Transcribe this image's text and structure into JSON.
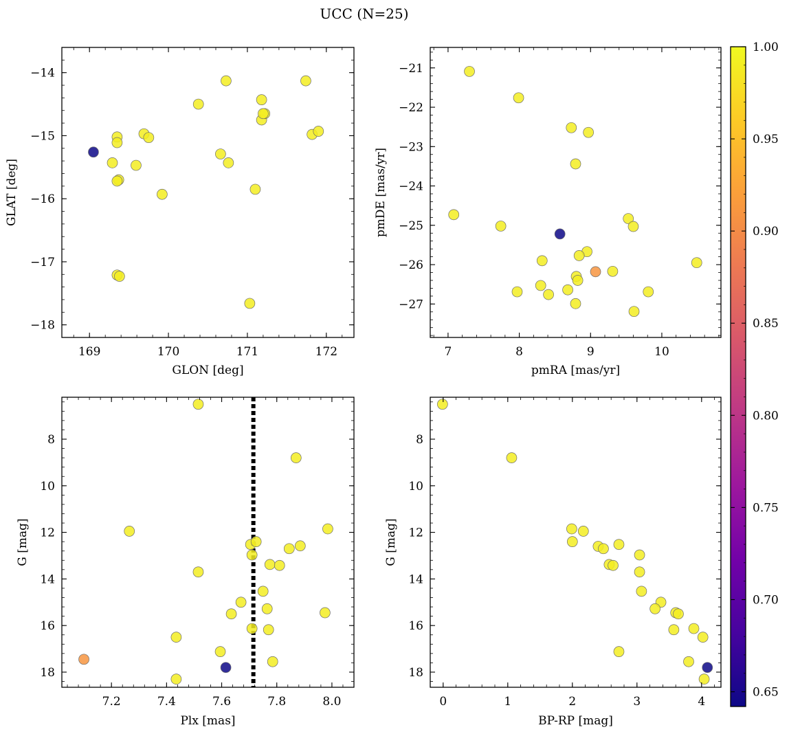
{
  "figure": {
    "title": "UCC (N=25)"
  },
  "colorbar": {
    "min": 0.642,
    "max": 1.0,
    "ticks": [
      0.65,
      0.7,
      0.75,
      0.8,
      0.85,
      0.9,
      0.95,
      1.0
    ],
    "tick_labels": [
      "0.65",
      "0.70",
      "0.75",
      "0.80",
      "0.85",
      "0.90",
      "0.95",
      "1.00"
    ],
    "colormap": "plasma",
    "stops": [
      "#0d0887",
      "#46039f",
      "#7201a8",
      "#9c179e",
      "#bd3786",
      "#d8576b",
      "#ed7953",
      "#fb9f3a",
      "#fdca26",
      "#f0f921"
    ]
  },
  "chart_data": [
    {
      "id": "glon-glat",
      "type": "scatter",
      "xlabel": "GLON [deg]",
      "ylabel": "GLAT [deg]",
      "xlim": [
        168.65,
        172.35
      ],
      "ylim": [
        -18.2,
        -13.6
      ],
      "xticks": [
        169,
        170,
        171,
        172
      ],
      "xtick_labels": [
        "169",
        "170",
        "171",
        "172"
      ],
      "yticks": [
        -14,
        -15,
        -16,
        -17,
        -18
      ],
      "ytick_labels": [
        "−14",
        "−15",
        "−16",
        "−17",
        "−18"
      ],
      "y_inverted": false,
      "points": [
        {
          "x": 169.05,
          "y": -15.26,
          "c": 0.642
        },
        {
          "x": 169.29,
          "y": -15.43,
          "c": 0.99
        },
        {
          "x": 169.35,
          "y": -15.02,
          "c": 0.99
        },
        {
          "x": 169.35,
          "y": -15.11,
          "c": 0.99
        },
        {
          "x": 169.37,
          "y": -15.7,
          "c": 0.99
        },
        {
          "x": 169.35,
          "y": -15.72,
          "c": 0.99
        },
        {
          "x": 169.59,
          "y": -15.47,
          "c": 0.99
        },
        {
          "x": 169.69,
          "y": -14.97,
          "c": 0.99
        },
        {
          "x": 169.75,
          "y": -15.03,
          "c": 0.99
        },
        {
          "x": 169.92,
          "y": -15.93,
          "c": 0.99
        },
        {
          "x": 169.35,
          "y": -17.21,
          "c": 0.99
        },
        {
          "x": 169.38,
          "y": -17.23,
          "c": 0.99
        },
        {
          "x": 170.38,
          "y": -14.5,
          "c": 0.99
        },
        {
          "x": 170.66,
          "y": -15.29,
          "c": 0.99
        },
        {
          "x": 170.73,
          "y": -14.13,
          "c": 0.99
        },
        {
          "x": 170.76,
          "y": -15.43,
          "c": 0.99
        },
        {
          "x": 171.03,
          "y": -17.66,
          "c": 0.99
        },
        {
          "x": 171.1,
          "y": -15.85,
          "c": 0.99
        },
        {
          "x": 171.18,
          "y": -14.43,
          "c": 0.99
        },
        {
          "x": 171.18,
          "y": -14.75,
          "c": 0.99
        },
        {
          "x": 171.22,
          "y": -14.65,
          "c": 0.99
        },
        {
          "x": 171.2,
          "y": -14.65,
          "c": 0.99
        },
        {
          "x": 171.74,
          "y": -14.13,
          "c": 0.99
        },
        {
          "x": 171.82,
          "y": -14.98,
          "c": 0.99
        },
        {
          "x": 171.9,
          "y": -14.93,
          "c": 0.99
        }
      ]
    },
    {
      "id": "pmra-pmde",
      "type": "scatter",
      "xlabel": "pmRA [mas/yr]",
      "ylabel": "pmDE [mas/yr]",
      "xlim": [
        6.75,
        10.83
      ],
      "ylim": [
        -27.85,
        -20.48
      ],
      "xticks": [
        7,
        8,
        9,
        10
      ],
      "xtick_labels": [
        "7",
        "8",
        "9",
        "10"
      ],
      "yticks": [
        -21,
        -22,
        -23,
        -24,
        -25,
        -26,
        -27
      ],
      "ytick_labels": [
        "−21",
        "−22",
        "−23",
        "−24",
        "−25",
        "−26",
        "−27"
      ],
      "y_inverted": false,
      "points": [
        {
          "x": 7.3,
          "y": -21.09,
          "c": 0.99
        },
        {
          "x": 7.99,
          "y": -21.76,
          "c": 0.99
        },
        {
          "x": 8.73,
          "y": -22.52,
          "c": 0.99
        },
        {
          "x": 8.97,
          "y": -22.64,
          "c": 0.99
        },
        {
          "x": 8.79,
          "y": -23.44,
          "c": 0.99
        },
        {
          "x": 7.08,
          "y": -24.73,
          "c": 0.99
        },
        {
          "x": 7.74,
          "y": -25.02,
          "c": 0.99
        },
        {
          "x": 8.57,
          "y": -25.22,
          "c": 0.642
        },
        {
          "x": 9.53,
          "y": -24.83,
          "c": 0.99
        },
        {
          "x": 9.6,
          "y": -25.03,
          "c": 0.99
        },
        {
          "x": 8.32,
          "y": -25.9,
          "c": 0.99
        },
        {
          "x": 8.95,
          "y": -25.67,
          "c": 0.99
        },
        {
          "x": 8.84,
          "y": -25.77,
          "c": 0.99
        },
        {
          "x": 9.07,
          "y": -26.18,
          "c": 0.91
        },
        {
          "x": 9.31,
          "y": -26.17,
          "c": 0.99
        },
        {
          "x": 10.49,
          "y": -25.95,
          "c": 0.99
        },
        {
          "x": 8.8,
          "y": -26.3,
          "c": 0.99
        },
        {
          "x": 8.82,
          "y": -26.4,
          "c": 0.99
        },
        {
          "x": 8.3,
          "y": -26.53,
          "c": 0.99
        },
        {
          "x": 7.97,
          "y": -26.69,
          "c": 0.99
        },
        {
          "x": 8.41,
          "y": -26.76,
          "c": 0.99
        },
        {
          "x": 8.68,
          "y": -26.64,
          "c": 0.99
        },
        {
          "x": 9.81,
          "y": -26.69,
          "c": 0.99
        },
        {
          "x": 8.79,
          "y": -26.99,
          "c": 0.99
        },
        {
          "x": 9.61,
          "y": -27.19,
          "c": 0.99
        }
      ]
    },
    {
      "id": "plx-g",
      "type": "scatter",
      "xlabel": "Plx [mas]",
      "ylabel": "G [mag]",
      "xlim": [
        7.02,
        8.08
      ],
      "ylim": [
        6.2,
        18.65
      ],
      "xticks": [
        7.2,
        7.4,
        7.6,
        7.8,
        8.0
      ],
      "xtick_labels": [
        "7.2",
        "7.4",
        "7.6",
        "7.8",
        "8.0"
      ],
      "yticks": [
        8,
        10,
        12,
        14,
        16,
        18
      ],
      "ytick_labels": [
        "8",
        "10",
        "12",
        "14",
        "16",
        "18"
      ],
      "y_inverted": true,
      "vline": 7.715,
      "points": [
        {
          "x": 7.515,
          "y": 6.5,
          "c": 0.99
        },
        {
          "x": 7.87,
          "y": 8.8,
          "c": 0.99
        },
        {
          "x": 7.265,
          "y": 11.95,
          "c": 0.99
        },
        {
          "x": 7.985,
          "y": 11.85,
          "c": 0.99
        },
        {
          "x": 7.705,
          "y": 12.52,
          "c": 0.99
        },
        {
          "x": 7.725,
          "y": 12.4,
          "c": 0.99
        },
        {
          "x": 7.885,
          "y": 12.58,
          "c": 0.99
        },
        {
          "x": 7.845,
          "y": 12.7,
          "c": 0.99
        },
        {
          "x": 7.71,
          "y": 12.97,
          "c": 0.99
        },
        {
          "x": 7.775,
          "y": 13.38,
          "c": 0.99
        },
        {
          "x": 7.81,
          "y": 13.42,
          "c": 0.99
        },
        {
          "x": 7.515,
          "y": 13.7,
          "c": 0.99
        },
        {
          "x": 7.75,
          "y": 14.53,
          "c": 0.99
        },
        {
          "x": 7.67,
          "y": 15.0,
          "c": 0.99
        },
        {
          "x": 7.765,
          "y": 15.28,
          "c": 0.99
        },
        {
          "x": 7.975,
          "y": 15.45,
          "c": 0.99
        },
        {
          "x": 7.635,
          "y": 15.5,
          "c": 0.99
        },
        {
          "x": 7.71,
          "y": 16.13,
          "c": 0.99
        },
        {
          "x": 7.77,
          "y": 16.18,
          "c": 0.99
        },
        {
          "x": 7.435,
          "y": 16.5,
          "c": 0.99
        },
        {
          "x": 7.595,
          "y": 17.12,
          "c": 0.99
        },
        {
          "x": 7.1,
          "y": 17.45,
          "c": 0.91
        },
        {
          "x": 7.785,
          "y": 17.55,
          "c": 0.99
        },
        {
          "x": 7.615,
          "y": 17.8,
          "c": 0.642
        },
        {
          "x": 7.435,
          "y": 18.3,
          "c": 0.99
        }
      ]
    },
    {
      "id": "bprp-g",
      "type": "scatter",
      "xlabel": "BP-RP [mag]",
      "ylabel": "G [mag]",
      "xlim": [
        -0.2,
        4.3
      ],
      "ylim": [
        6.2,
        18.65
      ],
      "xticks": [
        0,
        1,
        2,
        3,
        4
      ],
      "xtick_labels": [
        "0",
        "1",
        "2",
        "3",
        "4"
      ],
      "yticks": [
        8,
        10,
        12,
        14,
        16,
        18
      ],
      "ytick_labels": [
        "8",
        "10",
        "12",
        "14",
        "16",
        "18"
      ],
      "y_inverted": true,
      "points": [
        {
          "x": -0.01,
          "y": 6.5,
          "c": 0.99
        },
        {
          "x": 1.06,
          "y": 8.8,
          "c": 0.99
        },
        {
          "x": 1.99,
          "y": 11.85,
          "c": 0.99
        },
        {
          "x": 2.17,
          "y": 11.95,
          "c": 0.99
        },
        {
          "x": 2.0,
          "y": 12.4,
          "c": 0.99
        },
        {
          "x": 2.4,
          "y": 12.6,
          "c": 0.99
        },
        {
          "x": 2.48,
          "y": 12.7,
          "c": 0.99
        },
        {
          "x": 2.72,
          "y": 12.52,
          "c": 0.99
        },
        {
          "x": 3.04,
          "y": 12.97,
          "c": 0.99
        },
        {
          "x": 2.57,
          "y": 13.38,
          "c": 0.99
        },
        {
          "x": 2.63,
          "y": 13.42,
          "c": 0.99
        },
        {
          "x": 3.04,
          "y": 13.7,
          "c": 0.99
        },
        {
          "x": 3.07,
          "y": 14.53,
          "c": 0.99
        },
        {
          "x": 3.37,
          "y": 15.0,
          "c": 0.99
        },
        {
          "x": 3.28,
          "y": 15.28,
          "c": 0.99
        },
        {
          "x": 3.6,
          "y": 15.45,
          "c": 0.99
        },
        {
          "x": 3.64,
          "y": 15.5,
          "c": 0.99
        },
        {
          "x": 3.88,
          "y": 16.13,
          "c": 0.99
        },
        {
          "x": 3.57,
          "y": 16.18,
          "c": 0.99
        },
        {
          "x": 4.02,
          "y": 16.5,
          "c": 0.99
        },
        {
          "x": 2.72,
          "y": 17.12,
          "c": 0.99
        },
        {
          "x": 3.8,
          "y": 17.55,
          "c": 0.99
        },
        {
          "x": 4.09,
          "y": 17.8,
          "c": 0.642
        },
        {
          "x": 4.04,
          "y": 18.3,
          "c": 0.99
        }
      ]
    }
  ]
}
